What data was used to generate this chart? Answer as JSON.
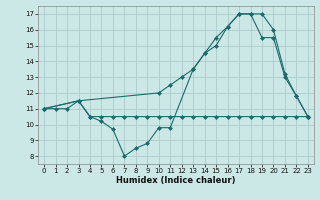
{
  "xlabel": "Humidex (Indice chaleur)",
  "bg_color": "#cce8e6",
  "grid_color": "#aaccca",
  "line_color": "#1a6b6a",
  "xlim": [
    -0.5,
    23.5
  ],
  "ylim": [
    7.5,
    17.5
  ],
  "xticks": [
    0,
    1,
    2,
    3,
    4,
    5,
    6,
    7,
    8,
    9,
    10,
    11,
    12,
    13,
    14,
    15,
    16,
    17,
    18,
    19,
    20,
    21,
    22,
    23
  ],
  "yticks": [
    8,
    9,
    10,
    11,
    12,
    13,
    14,
    15,
    16,
    17
  ],
  "line1_x": [
    0,
    1,
    2,
    3,
    4,
    5,
    6,
    7,
    8,
    9,
    10,
    11,
    13,
    14,
    15,
    16,
    17,
    18,
    19,
    20,
    21,
    22,
    23
  ],
  "line1_y": [
    11,
    11,
    11,
    11.5,
    10.5,
    10.2,
    9.7,
    8.0,
    8.5,
    8.8,
    9.8,
    9.8,
    13.5,
    14.5,
    15.5,
    16.2,
    17.0,
    17.0,
    17.0,
    16.0,
    13.2,
    11.8,
    10.5
  ],
  "line2_x": [
    0,
    3,
    4,
    5,
    6,
    7,
    8,
    9,
    10,
    11,
    12,
    13,
    14,
    15,
    16,
    17,
    18,
    19,
    20,
    21,
    22,
    23
  ],
  "line2_y": [
    11,
    11.5,
    10.5,
    10.5,
    10.5,
    10.5,
    10.5,
    10.5,
    10.5,
    10.5,
    10.5,
    10.5,
    10.5,
    10.5,
    10.5,
    10.5,
    10.5,
    10.5,
    10.5,
    10.5,
    10.5,
    10.5
  ],
  "line3_x": [
    0,
    3,
    10,
    11,
    12,
    13,
    14,
    15,
    16,
    17,
    18,
    19,
    20,
    21,
    22,
    23
  ],
  "line3_y": [
    11,
    11.5,
    12.0,
    12.5,
    13.0,
    13.5,
    14.5,
    15.0,
    16.2,
    17.0,
    17.0,
    15.5,
    15.5,
    13.0,
    11.8,
    10.5
  ]
}
